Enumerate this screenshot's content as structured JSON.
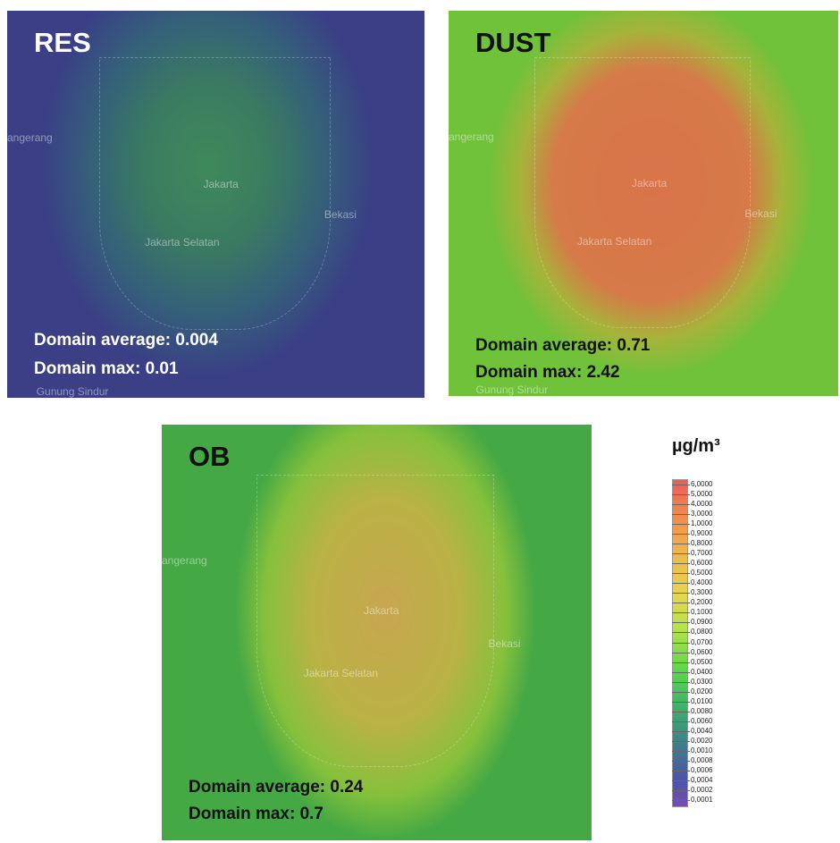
{
  "panels": [
    {
      "title": "RES",
      "places": [
        "angerang",
        "Jakarta",
        "Jakarta Selatan",
        "Bekasi",
        "Gunung Sindur"
      ],
      "stats": [
        "Domain average: 0.004",
        "Domain max: 0.01"
      ]
    },
    {
      "title": "DUST",
      "places": [
        "angerang",
        "Jakarta",
        "Jakarta Selatan",
        "Bekasi",
        "Gunung Sindur"
      ],
      "stats": [
        "Domain average: 0.71",
        "Domain max: 2.42"
      ]
    },
    {
      "title": "OB",
      "places": [
        "angerang",
        "Jakarta",
        "Jakarta Selatan",
        "Bekasi"
      ],
      "stats": [
        "Domain average: 0.24",
        "Domain max: 0.7"
      ]
    }
  ],
  "colorbar": {
    "unit": "µg/m³",
    "labels": [
      "6,0000",
      "5,0000",
      "4,0000",
      "3,0000",
      "1,0000",
      "0,9000",
      "0,8000",
      "0,7000",
      "0,6000",
      "0,5000",
      "0,4000",
      "0,3000",
      "0,2000",
      "0,1000",
      "0,0900",
      "0,0800",
      "0,0700",
      "0,0600",
      "0,0500",
      "0,0400",
      "0,0300",
      "0,0200",
      "0,0100",
      "0,0080",
      "0,0060",
      "0,0040",
      "0,0020",
      "0,0010",
      "0,0008",
      "0,0006",
      "0,0004",
      "0,0002",
      "0,0001"
    ]
  }
}
